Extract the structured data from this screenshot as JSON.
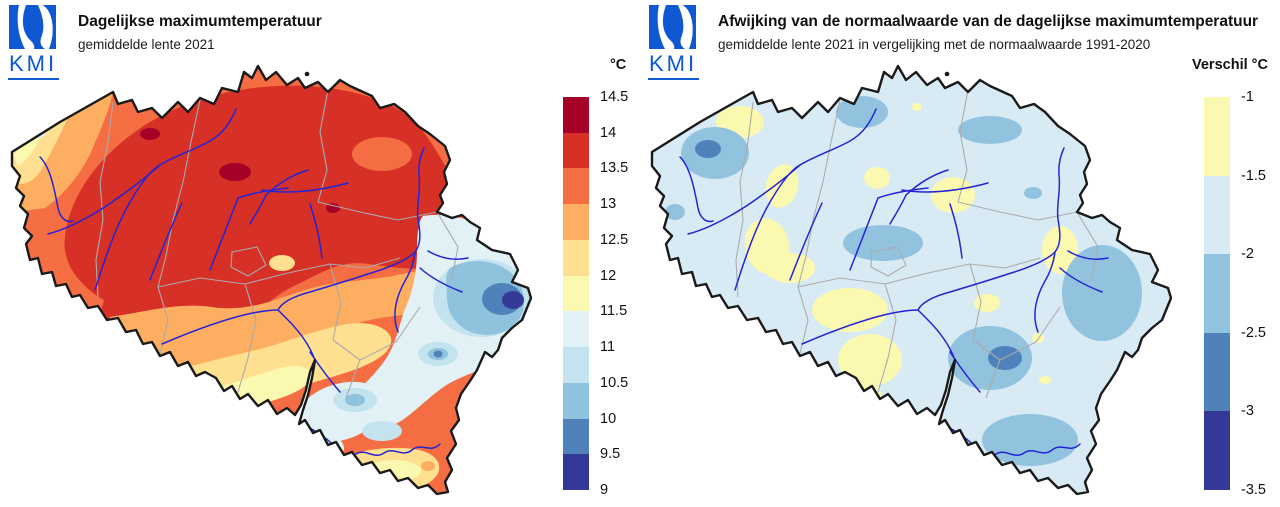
{
  "brand": {
    "name": "KMI",
    "blue": "#1057d2",
    "mark_white": "#ffffff"
  },
  "map": {
    "region": "Belgium",
    "outline": "#1a1a1a",
    "province_border": "#ababab",
    "river": "#2424d6",
    "sea": "#ffffff"
  },
  "left_panel": {
    "logo_text": "KMI",
    "title": "Dagelijkse maximumtemperatuur",
    "subtitle": "gemiddelde lente 2021",
    "legend": {
      "title": "°C",
      "tick_labels": [
        "14.5",
        "14",
        "13.5",
        "13",
        "12.5",
        "12",
        "11.5",
        "11",
        "10.5",
        "10",
        "9.5",
        "9"
      ],
      "colors": [
        "#a50026",
        "#d73027",
        "#f46d43",
        "#fdae61",
        "#fee090",
        "#fbf9b0",
        "#e1f1f6",
        "#c3e3ef",
        "#8fc2dc",
        "#4f81bb",
        "#343997"
      ]
    }
  },
  "right_panel": {
    "logo_text": "KMI",
    "title": "Afwijking van de normaalwaarde van de dagelijkse maximumtemperatuur",
    "subtitle": "gemiddelde lente 2021 in vergelijking met de normaalwaarde 1991-2020",
    "legend": {
      "title": "Verschil °C",
      "tick_labels": [
        "-1",
        "-1.5",
        "-2",
        "-2.5",
        "-3",
        "-3.5"
      ],
      "colors": [
        "#fbf9b0",
        "#d8eaf3",
        "#92c3de",
        "#4f81bb",
        "#343997"
      ]
    }
  },
  "chart_data": [
    {
      "type": "map-contour",
      "title": "Dagelijkse maximumtemperatuur",
      "subtitle": "gemiddelde lente 2021",
      "region": "Belgium",
      "unit": "°C",
      "legend_title": "°C",
      "band_edges": [
        14.5,
        14,
        13.5,
        13,
        12.5,
        12,
        11.5,
        11,
        10.5,
        10,
        9.5,
        9
      ],
      "band_colors": [
        "#a50026",
        "#d73027",
        "#f46d43",
        "#fdae61",
        "#fee090",
        "#fbf9b0",
        "#e1f1f6",
        "#c3e3ef",
        "#8fc2dc",
        "#4f81bb",
        "#343997"
      ],
      "pattern": "13.5-14.5 in north and centre-west, 12-13 in central band and coast, 9-11.5 in the southeast Ardennes with minimum 9-9.5 at the far east"
    },
    {
      "type": "map-contour",
      "title": "Afwijking van de normaalwaarde van de dagelijkse maximumtemperatuur",
      "subtitle": "gemiddelde lente 2021 in vergelijking met de normaalwaarde 1991-2020",
      "region": "Belgium",
      "unit": "°C",
      "legend_title": "Verschil °C",
      "band_edges": [
        -1,
        -1.5,
        -2,
        -2.5,
        -3,
        -3.5
      ],
      "band_colors": [
        "#fbf9b0",
        "#d8eaf3",
        "#92c3de",
        "#4f81bb",
        "#343997"
      ],
      "pattern": "mostly -1.5 to -2 countrywide, -1 to -1.5 patches in Flanders and south Hainaut, -2 to -3 cores in the Westhoek, central Ardennes and southeast"
    }
  ]
}
